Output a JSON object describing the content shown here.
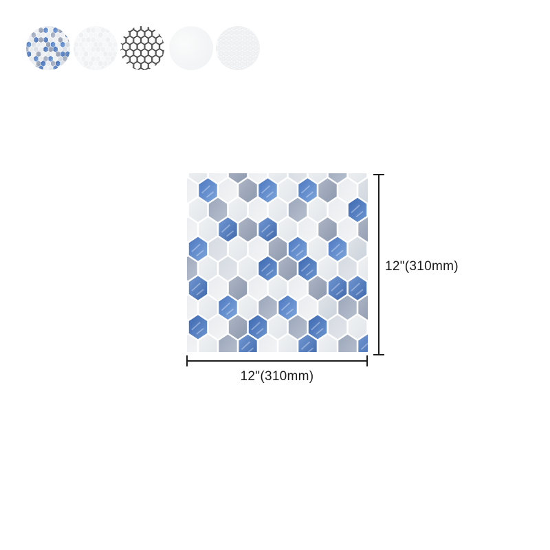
{
  "swatches": [
    {
      "name": "blue-gray-hex-mosaic-variant"
    },
    {
      "name": "white-hex-mosaic-variant"
    },
    {
      "name": "white-hex-dark-grout-variant"
    },
    {
      "name": "plain-white-tile-variant"
    },
    {
      "name": "white-penny-round-variant"
    }
  ],
  "mosaic": {
    "palette": {
      "B": "#4e7cc4",
      "G": "#9daabe",
      "W": "#eaecef",
      "L": "#d9dee4",
      "grout": "#ffffff"
    },
    "rows": [
      {
        "type": "even",
        "cells": "WWGWWLWGW"
      },
      {
        "type": "odd",
        "cells": "WBWGBWBGWL"
      },
      {
        "type": "even",
        "cells": "WGWWWGWWB"
      },
      {
        "type": "odd",
        "cells": "WWBGBWWGWG"
      },
      {
        "type": "even",
        "cells": "BLWWGBWBL"
      },
      {
        "type": "odd",
        "cells": "GWLWBGBWLW"
      },
      {
        "type": "even",
        "cells": "BWGWWWGBB"
      },
      {
        "type": "odd",
        "cells": "WWBWGBWLGG"
      },
      {
        "type": "even",
        "cells": "BWGBWGBLW"
      },
      {
        "type": "odd",
        "cells": "WWGBWWBWGB"
      }
    ]
  },
  "dimensions": {
    "height_label": "12\"(310mm)",
    "width_label": "12\"(310mm)"
  }
}
